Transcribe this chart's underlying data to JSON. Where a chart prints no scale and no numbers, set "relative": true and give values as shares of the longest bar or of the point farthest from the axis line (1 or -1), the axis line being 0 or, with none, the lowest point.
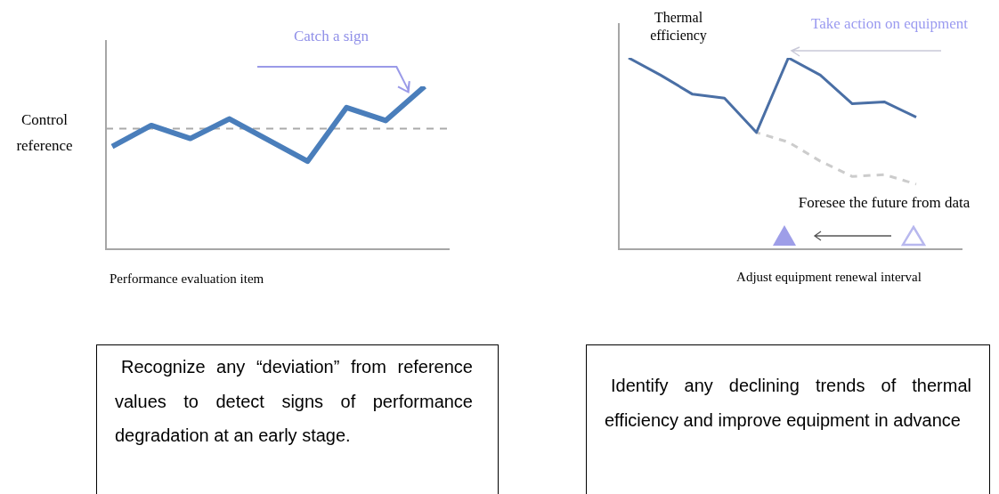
{
  "chart_data": [
    {
      "type": "line",
      "relative": true,
      "xlabel": "Performance evaluation item",
      "categories": [
        null,
        null,
        null,
        null,
        null,
        null,
        null,
        null,
        null
      ],
      "series": [
        {
          "color": "#4a7ebb",
          "values": [
            0.63,
            0.76,
            0.68,
            0.8,
            0.67,
            0.54,
            0.87,
            0.79,
            1.0
          ]
        }
      ],
      "ref_lines": [
        {
          "axis": "y",
          "value": 0.74,
          "label": "Control reference",
          "color": "#aaaaaa",
          "line_style": "dashed"
        }
      ],
      "annotations": [
        "Catch a sign",
        "Recognize any “deviation” from reference values to detect signs of performance degradation at an early stage."
      ]
    },
    {
      "type": "line",
      "relative": true,
      "xlabel": "Adjust equipment renewal interval",
      "ylabel": "Thermal efficiency",
      "categories": [
        null,
        null,
        null,
        null,
        null,
        null,
        null,
        null,
        null,
        null
      ],
      "series": [
        {
          "color": "#4a6fa5",
          "values": [
            1.0,
            0.91,
            0.81,
            0.79,
            0.61,
            1.0,
            0.91,
            0.76,
            0.77,
            0.69
          ]
        },
        {
          "color": "#cccccc",
          "line_style": "dashed",
          "values": [
            null,
            null,
            null,
            null,
            0.61,
            0.56,
            0.46,
            0.38,
            0.39,
            0.34
          ]
        }
      ],
      "annotations": [
        "Take action on equipment",
        "Foresee the future from data",
        "Identify any declining trends of thermal efficiency and improve equipment in advance"
      ]
    }
  ]
}
